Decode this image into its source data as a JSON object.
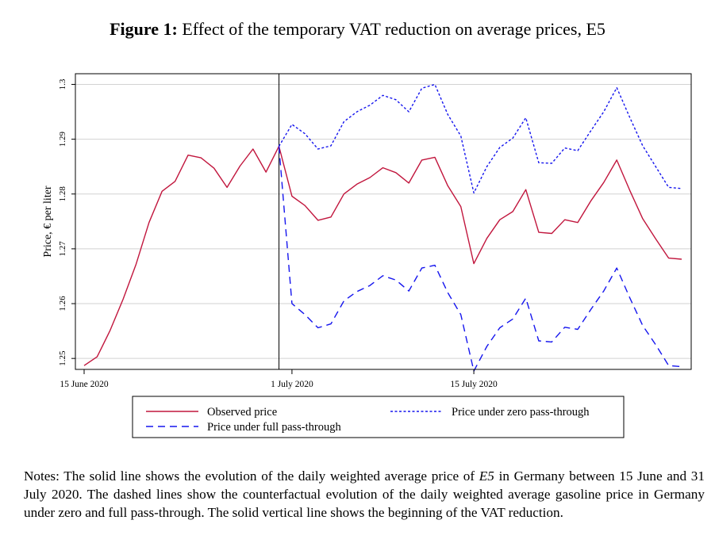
{
  "figure": {
    "label": "Figure 1:",
    "title": "Effect of the temporary VAT reduction on average prices, E5"
  },
  "notes": {
    "prefix": "Notes: The solid line shows the evolution of the daily weighted average price of ",
    "fuel": "E5",
    "suffix": " in Germany between 15 June and 31 July 2020. The dashed lines show the counterfactual evolution of the daily weighted average gasoline price in Germany under zero and full pass-through. The solid vertical line shows the beginning of the VAT reduction."
  },
  "chart_data": {
    "type": "line",
    "ylabel": "Price, € per liter",
    "xlabel": "",
    "x_start": "2020-06-15",
    "x_end": "2020-07-31",
    "xticks": [
      {
        "date": "2020-06-15",
        "label": "15 June 2020"
      },
      {
        "date": "2020-07-01",
        "label": "1 July 2020"
      },
      {
        "date": "2020-07-15",
        "label": "15 July 2020"
      }
    ],
    "yticks": [
      1.25,
      1.26,
      1.27,
      1.28,
      1.29,
      1.3
    ],
    "ylim": [
      1.248,
      1.3005
    ],
    "grid": true,
    "vline": "2020-06-30",
    "legend_position": "bottom",
    "colors": {
      "observed": "#c1163d",
      "zero": "#1515ee",
      "full": "#1515ee"
    },
    "series": [
      {
        "name": "Observed price",
        "key": "observed",
        "style": "solid",
        "dates": [
          "2020-06-15",
          "2020-06-16",
          "2020-06-17",
          "2020-06-18",
          "2020-06-19",
          "2020-06-20",
          "2020-06-21",
          "2020-06-22",
          "2020-06-23",
          "2020-06-24",
          "2020-06-25",
          "2020-06-26",
          "2020-06-27",
          "2020-06-28",
          "2020-06-29",
          "2020-06-30",
          "2020-07-01",
          "2020-07-02",
          "2020-07-03",
          "2020-07-04",
          "2020-07-05",
          "2020-07-06",
          "2020-07-07",
          "2020-07-08",
          "2020-07-09",
          "2020-07-10",
          "2020-07-11",
          "2020-07-12",
          "2020-07-13",
          "2020-07-14",
          "2020-07-15",
          "2020-07-16",
          "2020-07-17",
          "2020-07-18",
          "2020-07-19",
          "2020-07-20",
          "2020-07-21",
          "2020-07-22",
          "2020-07-23",
          "2020-07-24",
          "2020-07-25",
          "2020-07-26",
          "2020-07-27",
          "2020-07-28",
          "2020-07-29",
          "2020-07-30",
          "2020-07-31"
        ],
        "values": [
          1.2487,
          1.2503,
          1.2551,
          1.2608,
          1.2672,
          1.2748,
          1.2805,
          1.2823,
          1.2871,
          1.2866,
          1.2847,
          1.2812,
          1.2851,
          1.2882,
          1.284,
          1.2887,
          1.2796,
          1.2779,
          1.2752,
          1.2758,
          1.28,
          1.2818,
          1.283,
          1.2848,
          1.2839,
          1.282,
          1.2862,
          1.2867,
          1.2815,
          1.2777,
          1.2673,
          1.2719,
          1.2753,
          1.2768,
          1.2808,
          1.273,
          1.2728,
          1.2753,
          1.2748,
          1.2787,
          1.2821,
          1.2862,
          1.2807,
          1.2755,
          1.2718,
          1.2683,
          1.2681
        ]
      },
      {
        "name": "Price under zero pass-through",
        "key": "zero",
        "style": "short-dash",
        "dates": [
          "2020-06-30",
          "2020-07-01",
          "2020-07-02",
          "2020-07-03",
          "2020-07-04",
          "2020-07-05",
          "2020-07-06",
          "2020-07-07",
          "2020-07-08",
          "2020-07-09",
          "2020-07-10",
          "2020-07-11",
          "2020-07-12",
          "2020-07-13",
          "2020-07-14",
          "2020-07-15",
          "2020-07-16",
          "2020-07-17",
          "2020-07-18",
          "2020-07-19",
          "2020-07-20",
          "2020-07-21",
          "2020-07-22",
          "2020-07-23",
          "2020-07-24",
          "2020-07-25",
          "2020-07-26",
          "2020-07-27",
          "2020-07-28",
          "2020-07-29",
          "2020-07-30",
          "2020-07-31"
        ],
        "values": [
          1.2887,
          1.2927,
          1.291,
          1.2882,
          1.2888,
          1.2932,
          1.295,
          1.2962,
          1.298,
          1.2972,
          1.295,
          1.2993,
          1.3,
          1.2945,
          1.2906,
          1.2802,
          1.285,
          1.2885,
          1.2902,
          1.2939,
          1.2857,
          1.2856,
          1.2884,
          1.2879,
          1.2915,
          1.295,
          1.2994,
          1.294,
          1.2888,
          1.285,
          1.2812,
          1.281
        ]
      },
      {
        "name": "Price under full pass-through",
        "key": "full",
        "style": "long-dash",
        "dates": [
          "2020-06-30",
          "2020-07-01",
          "2020-07-02",
          "2020-07-03",
          "2020-07-04",
          "2020-07-05",
          "2020-07-06",
          "2020-07-07",
          "2020-07-08",
          "2020-07-09",
          "2020-07-10",
          "2020-07-11",
          "2020-07-12",
          "2020-07-13",
          "2020-07-14",
          "2020-07-15",
          "2020-07-16",
          "2020-07-17",
          "2020-07-18",
          "2020-07-19",
          "2020-07-20",
          "2020-07-21",
          "2020-07-22",
          "2020-07-23",
          "2020-07-24",
          "2020-07-25",
          "2020-07-26",
          "2020-07-27",
          "2020-07-28",
          "2020-07-29",
          "2020-07-30",
          "2020-07-31"
        ],
        "values": [
          1.2887,
          1.26,
          1.258,
          1.2556,
          1.2563,
          1.2605,
          1.2622,
          1.2633,
          1.2651,
          1.2643,
          1.2623,
          1.2665,
          1.267,
          1.262,
          1.258,
          1.2477,
          1.2522,
          1.2556,
          1.2572,
          1.261,
          1.2532,
          1.253,
          1.2557,
          1.2553,
          1.2589,
          1.2623,
          1.2665,
          1.2611,
          1.256,
          1.2525,
          1.2487,
          1.2485
        ]
      }
    ]
  }
}
